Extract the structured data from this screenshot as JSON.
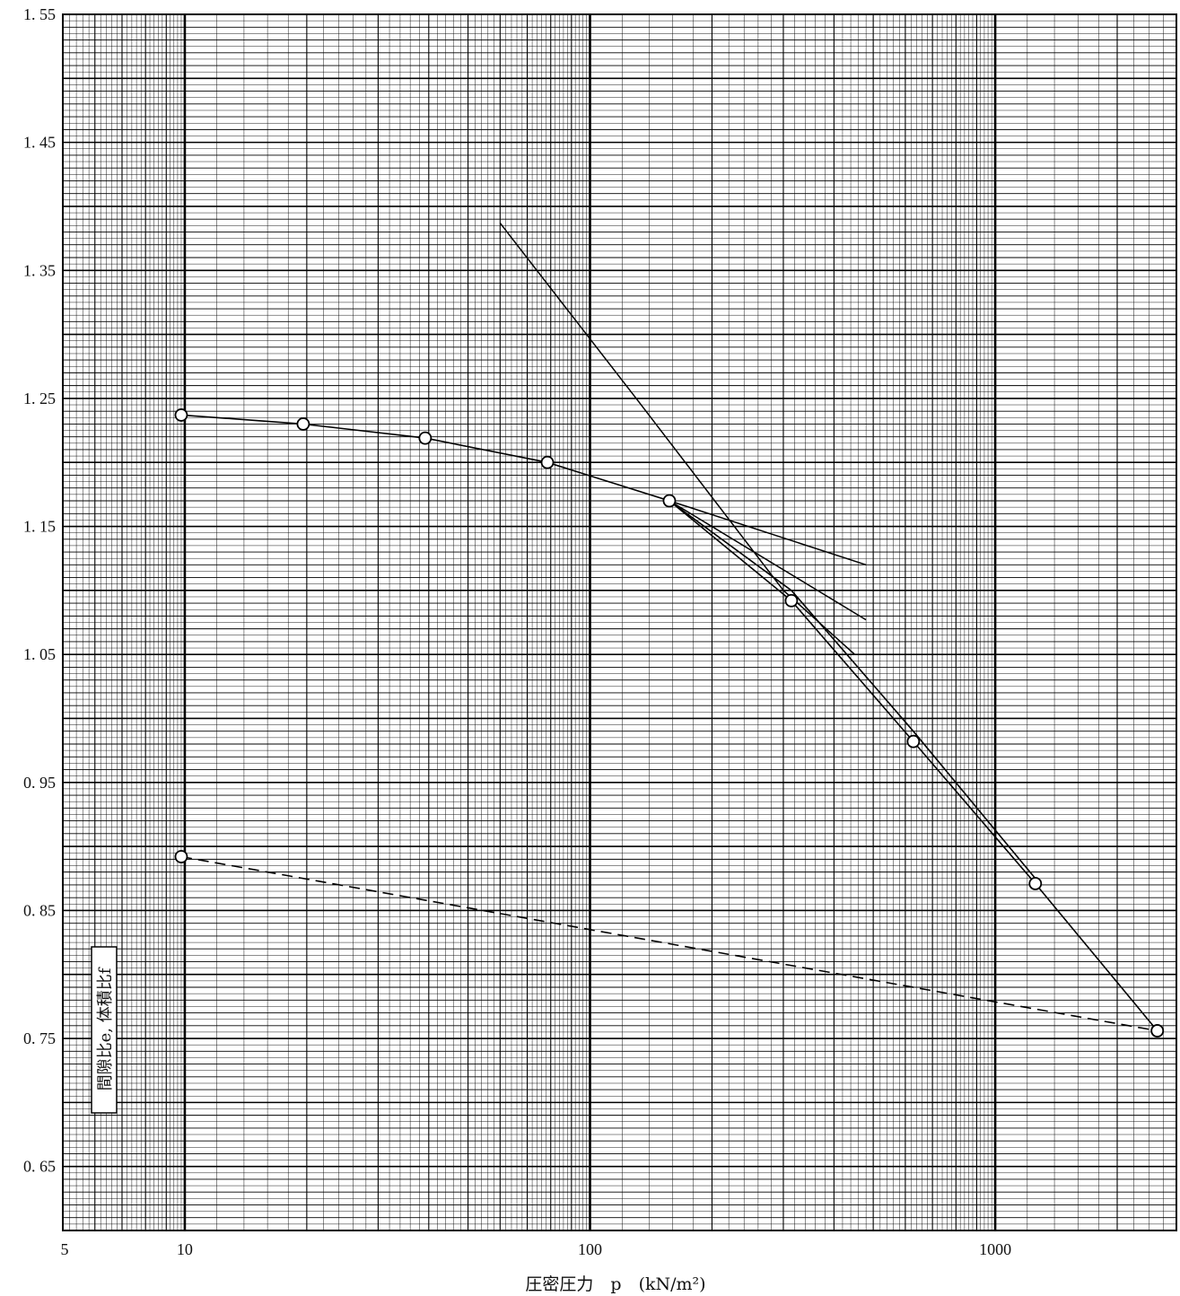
{
  "chart_data": {
    "type": "line",
    "xscale": "log",
    "xlim": [
      5,
      2800
    ],
    "ylim": [
      0.6,
      1.55
    ],
    "xticks": [
      {
        "value": 5,
        "label": "5"
      },
      {
        "value": 10,
        "label": "10"
      },
      {
        "value": 100,
        "label": "100"
      },
      {
        "value": 1000,
        "label": "1000"
      }
    ],
    "yticks": [
      {
        "value": 1.55,
        "label": "1. 55"
      },
      {
        "value": 1.45,
        "label": "1. 45"
      },
      {
        "value": 1.35,
        "label": "1. 35"
      },
      {
        "value": 1.25,
        "label": "1. 25"
      },
      {
        "value": 1.15,
        "label": "1. 15"
      },
      {
        "value": 1.05,
        "label": "1. 05"
      },
      {
        "value": 0.95,
        "label": "0. 95"
      },
      {
        "value": 0.85,
        "label": "0. 85"
      },
      {
        "value": 0.75,
        "label": "0. 75"
      },
      {
        "value": 0.65,
        "label": "0. 65"
      }
    ],
    "xlabel": "圧密圧力　p　(kN/m²)",
    "ylabel": "間隙比e, 体積比f",
    "grid": true,
    "series": [
      {
        "style": "solid-with-markers",
        "points": [
          [
            9.8,
            1.237
          ],
          [
            19.6,
            1.23
          ],
          [
            39.2,
            1.219
          ],
          [
            78.5,
            1.2
          ],
          [
            157,
            1.17
          ],
          [
            314,
            1.092
          ],
          [
            628,
            0.982
          ],
          [
            1256,
            0.871
          ],
          [
            2512,
            0.756
          ]
        ]
      },
      {
        "style": "solid",
        "points": [
          [
            157,
            1.17
          ],
          [
            314,
            1.1
          ],
          [
            628,
            0.99
          ],
          [
            1256,
            0.875
          ]
        ]
      },
      {
        "style": "dashed-with-markers",
        "points": [
          [
            9.8,
            0.892
          ],
          [
            2512,
            0.756
          ]
        ]
      }
    ],
    "construction_lines": [
      {
        "style": "solid",
        "points": [
          [
            60,
            1.387
          ],
          [
            130,
            1.25
          ],
          [
            300,
            1.1
          ],
          [
            450,
            1.05
          ]
        ]
      },
      {
        "style": "solid",
        "points": [
          [
            157,
            1.17
          ],
          [
            480,
            1.12
          ]
        ]
      },
      {
        "style": "solid",
        "points": [
          [
            157,
            1.17
          ],
          [
            480,
            1.077
          ]
        ]
      }
    ]
  }
}
